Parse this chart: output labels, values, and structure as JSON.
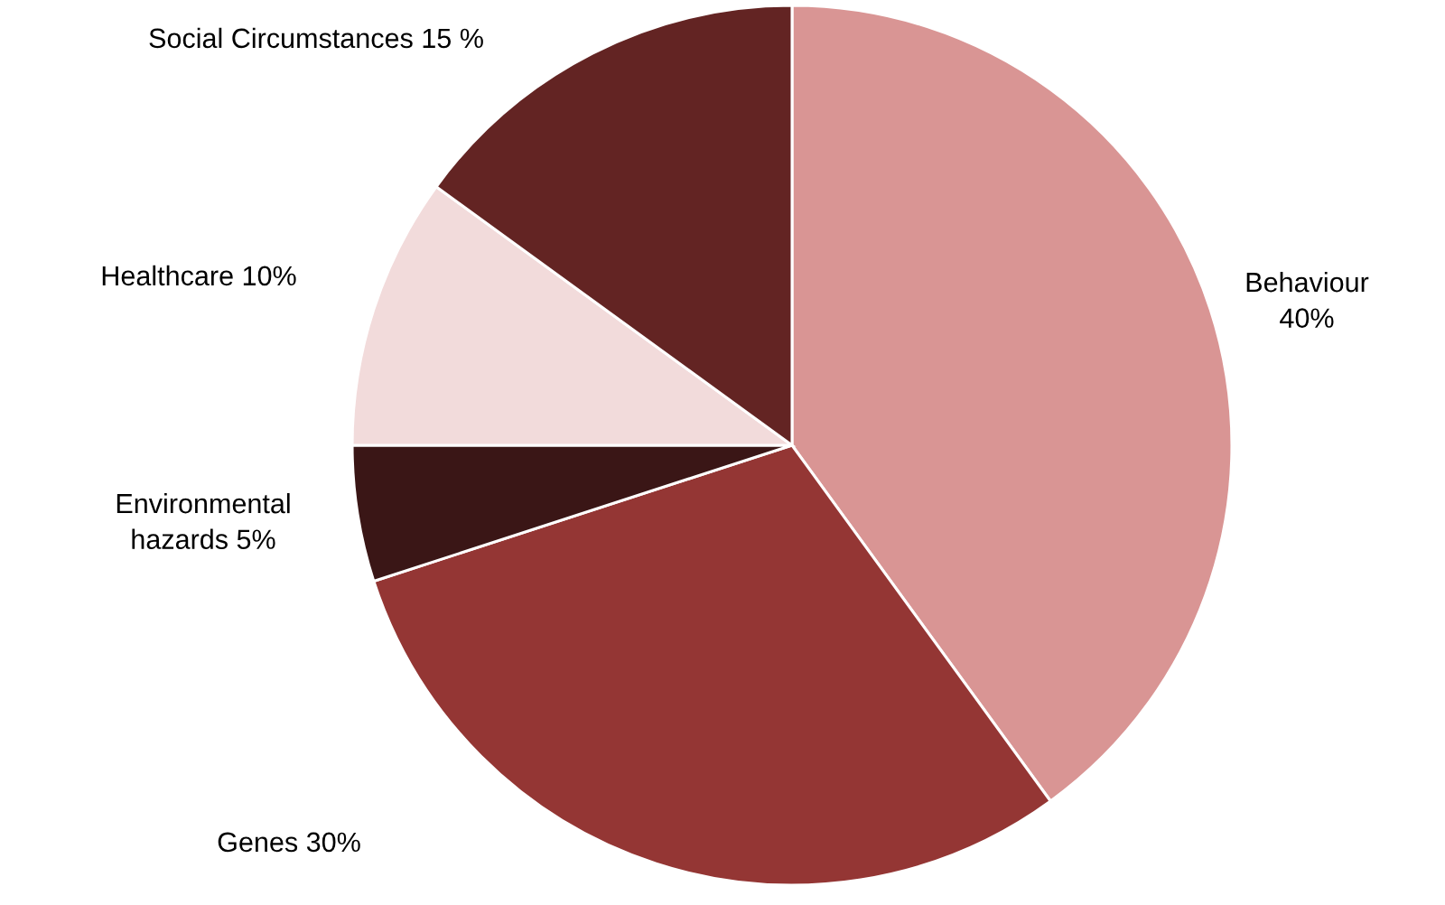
{
  "chart_data": {
    "type": "pie",
    "categories": [
      "Behaviour",
      "Genes",
      "Environmental hazards",
      "Healthcare",
      "Social Circumstances"
    ],
    "values": [
      40,
      30,
      5,
      10,
      15
    ],
    "value_labels": [
      "40%",
      "30%",
      "5%",
      "10%",
      "15 %"
    ],
    "colors": [
      "#d99594",
      "#943634",
      "#3a1616",
      "#f2dbdb",
      "#632423"
    ]
  }
}
